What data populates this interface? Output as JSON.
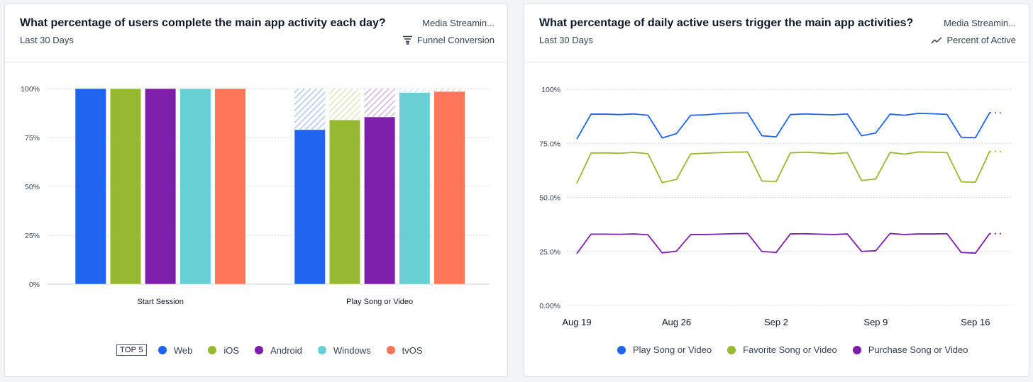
{
  "left_card": {
    "title": "What percentage of users complete the main app activity each day?",
    "subtitle": "Last 30 Days",
    "source": "Media Streamin...",
    "metric_label": "Funnel Conversion",
    "metric_icon": "funnel-icon",
    "legend_top_label": "TOP 5"
  },
  "right_card": {
    "title": "What percentage of daily active users trigger the main app activities?",
    "subtitle": "Last 30 Days",
    "source": "Media Streamin...",
    "metric_label": "Percent of Active",
    "metric_icon": "trend-line-icon"
  },
  "chart_data": [
    {
      "type": "bar",
      "title": "What percentage of users complete the main app activity each day?",
      "categories": [
        "Start Session",
        "Play Song or Video"
      ],
      "y_ticks": [
        "100%",
        "75%",
        "50%",
        "25%",
        "0%"
      ],
      "ylim": [
        0,
        100
      ],
      "series": [
        {
          "name": "Web",
          "color": "#1f63ee",
          "values": [
            100,
            79
          ]
        },
        {
          "name": "iOS",
          "color": "#97b932",
          "values": [
            100,
            84
          ]
        },
        {
          "name": "Android",
          "color": "#7e1fac",
          "values": [
            100,
            85.5
          ]
        },
        {
          "name": "Windows",
          "color": "#67d0d4",
          "values": [
            100,
            98
          ]
        },
        {
          "name": "tvOS",
          "color": "#ff7559",
          "values": [
            100,
            98.5
          ]
        }
      ]
    },
    {
      "type": "line",
      "title": "What percentage of daily active users trigger the main app activities?",
      "x_ticks": [
        "Aug 19",
        "Aug 26",
        "Sep 2",
        "Sep 9",
        "Sep 16"
      ],
      "x_tick_index": [
        0,
        7,
        14,
        21,
        28
      ],
      "y_ticks": [
        "100%",
        "75.0%",
        "50.0%",
        "25.0%",
        "0.00%"
      ],
      "ylim": [
        0,
        100
      ],
      "series": [
        {
          "name": "Play Song or Video",
          "color": "#1f63ee",
          "values": [
            77,
            88.5,
            88.5,
            88.3,
            88.6,
            88,
            77.5,
            79.5,
            88,
            88.2,
            88.7,
            89,
            89.1,
            78.5,
            78,
            88.3,
            88.6,
            88.4,
            88.2,
            88.6,
            78.5,
            79.8,
            88.5,
            88,
            88.9,
            88.7,
            88.4,
            77.8,
            77.6,
            89.2,
            89
          ]
        },
        {
          "name": "Favorite Song or Video",
          "color": "#97b932",
          "values": [
            56.5,
            70.5,
            70.6,
            70.4,
            70.8,
            70.2,
            56.8,
            58.3,
            70.1,
            70.4,
            70.7,
            70.9,
            71,
            57.6,
            57.3,
            70.6,
            70.9,
            70.6,
            70.2,
            70.7,
            57.8,
            58.5,
            70.8,
            70,
            71,
            70.9,
            70.7,
            57.2,
            57,
            71.3,
            71.1
          ]
        },
        {
          "name": "Purchase Song or Video",
          "color": "#7e1fac",
          "values": [
            24,
            33,
            33,
            32.9,
            33.1,
            32.7,
            24.3,
            25.1,
            32.8,
            32.8,
            33,
            33.2,
            33.3,
            25,
            24.5,
            33.1,
            33.2,
            33,
            32.8,
            33.1,
            25,
            25.3,
            33.3,
            32.8,
            33.1,
            33.1,
            33.2,
            24.5,
            24.2,
            33.3,
            33.2
          ]
        }
      ]
    }
  ]
}
